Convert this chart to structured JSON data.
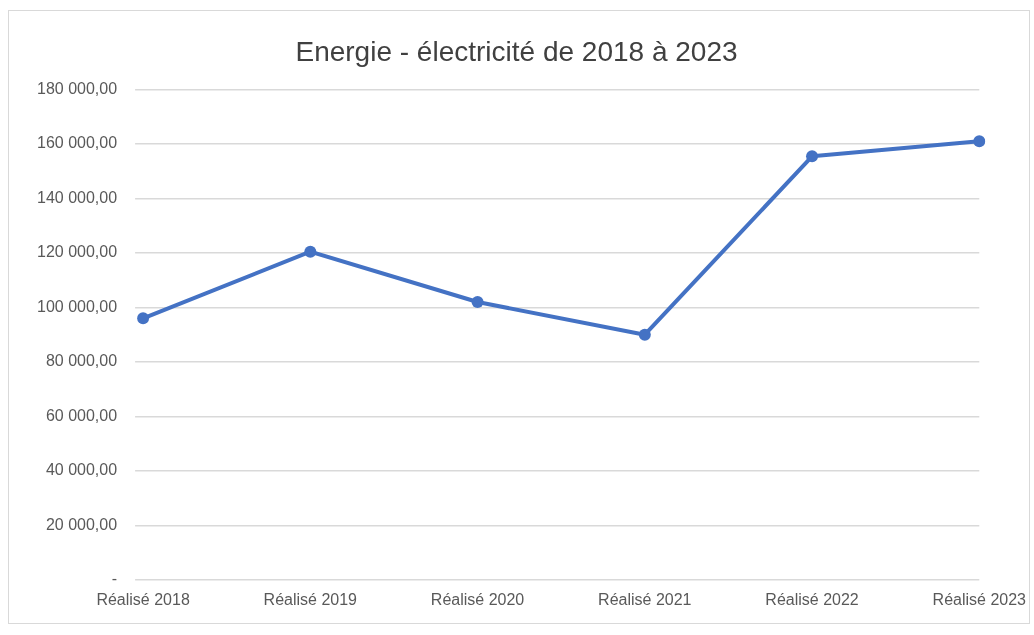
{
  "chart_data": {
    "type": "line",
    "title": "Energie - électricité de 2018 à 2023",
    "categories": [
      "Réalisé 2018",
      "Réalisé 2019",
      "Réalisé 2020",
      "Réalisé 2021",
      "Réalisé 2022",
      "Réalisé 2023"
    ],
    "series": [
      {
        "color": "#4472c4",
        "values": [
          96000,
          120500,
          102000,
          90000,
          155500,
          161000
        ]
      }
    ],
    "ylim": [
      0,
      180000
    ],
    "yticks": [
      {
        "value": 0,
        "label": "-"
      },
      {
        "value": 20000,
        "label": "20 000,00"
      },
      {
        "value": 40000,
        "label": "40 000,00"
      },
      {
        "value": 60000,
        "label": "60 000,00"
      },
      {
        "value": 80000,
        "label": "80 000,00"
      },
      {
        "value": 100000,
        "label": "100 000,00"
      },
      {
        "value": 120000,
        "label": "120 000,00"
      },
      {
        "value": 140000,
        "label": "140 000,00"
      },
      {
        "value": 160000,
        "label": "160 000,00"
      },
      {
        "value": 180000,
        "label": "180 000,00"
      }
    ],
    "grid": "y",
    "legend": false,
    "marker": "circle",
    "line_style": "solid"
  }
}
